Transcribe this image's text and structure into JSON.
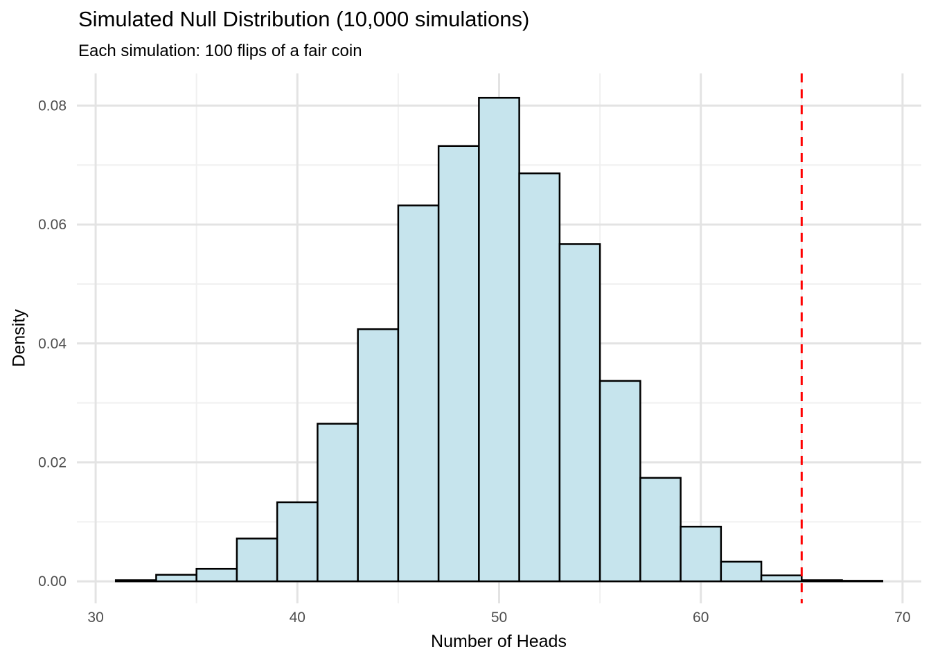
{
  "chart_data": {
    "type": "bar",
    "subtype": "histogram",
    "title": "Simulated Null Distribution (10,000 simulations)",
    "subtitle": "Each simulation: 100 flips of a fair coin",
    "xlabel": "Number of Heads",
    "ylabel": "Density",
    "bin_width": 2,
    "bins": [
      {
        "left": 31,
        "right": 33,
        "density": 0.0002
      },
      {
        "left": 33,
        "right": 35,
        "density": 0.0011
      },
      {
        "left": 35,
        "right": 37,
        "density": 0.0021
      },
      {
        "left": 37,
        "right": 39,
        "density": 0.0072
      },
      {
        "left": 39,
        "right": 41,
        "density": 0.0133
      },
      {
        "left": 41,
        "right": 43,
        "density": 0.0265
      },
      {
        "left": 43,
        "right": 45,
        "density": 0.0424
      },
      {
        "left": 45,
        "right": 47,
        "density": 0.0632
      },
      {
        "left": 47,
        "right": 49,
        "density": 0.0732
      },
      {
        "left": 49,
        "right": 51,
        "density": 0.0813
      },
      {
        "left": 51,
        "right": 53,
        "density": 0.0686
      },
      {
        "left": 53,
        "right": 55,
        "density": 0.0567
      },
      {
        "left": 55,
        "right": 57,
        "density": 0.0337
      },
      {
        "left": 57,
        "right": 59,
        "density": 0.0174
      },
      {
        "left": 59,
        "right": 61,
        "density": 0.0092
      },
      {
        "left": 61,
        "right": 63,
        "density": 0.0033
      },
      {
        "left": 63,
        "right": 65,
        "density": 0.001
      },
      {
        "left": 65,
        "right": 67,
        "density": 0.0002
      },
      {
        "left": 67,
        "right": 69,
        "density": 0.0001
      }
    ],
    "x_ticks": [
      {
        "v": 30,
        "label": "30"
      },
      {
        "v": 40,
        "label": "40"
      },
      {
        "v": 50,
        "label": "50"
      },
      {
        "v": 60,
        "label": "60"
      },
      {
        "v": 70,
        "label": "70"
      }
    ],
    "y_ticks": [
      {
        "v": 0.0,
        "label": "0.00"
      },
      {
        "v": 0.02,
        "label": "0.02"
      },
      {
        "v": 0.04,
        "label": "0.04"
      },
      {
        "v": 0.06,
        "label": "0.06"
      },
      {
        "v": 0.08,
        "label": "0.08"
      }
    ],
    "x_minor": [
      35,
      45,
      55,
      65
    ],
    "y_minor": [
      0.01,
      0.03,
      0.05,
      0.07
    ],
    "xlim": [
      29.07,
      70.93
    ],
    "ylim": [
      -0.0037,
      0.0854
    ],
    "grid": true,
    "legend_position": "none",
    "vline": {
      "x": 65,
      "style": "dashed",
      "color": "#ff0000"
    },
    "colors": {
      "bar_fill": "#c6e4ed",
      "bar_stroke": "#000000",
      "grid_major": "#e3e3e3",
      "grid_minor": "#f0f0f0",
      "tick_label": "#4d4d4d",
      "text": "#000000",
      "background": "#ffffff"
    }
  }
}
